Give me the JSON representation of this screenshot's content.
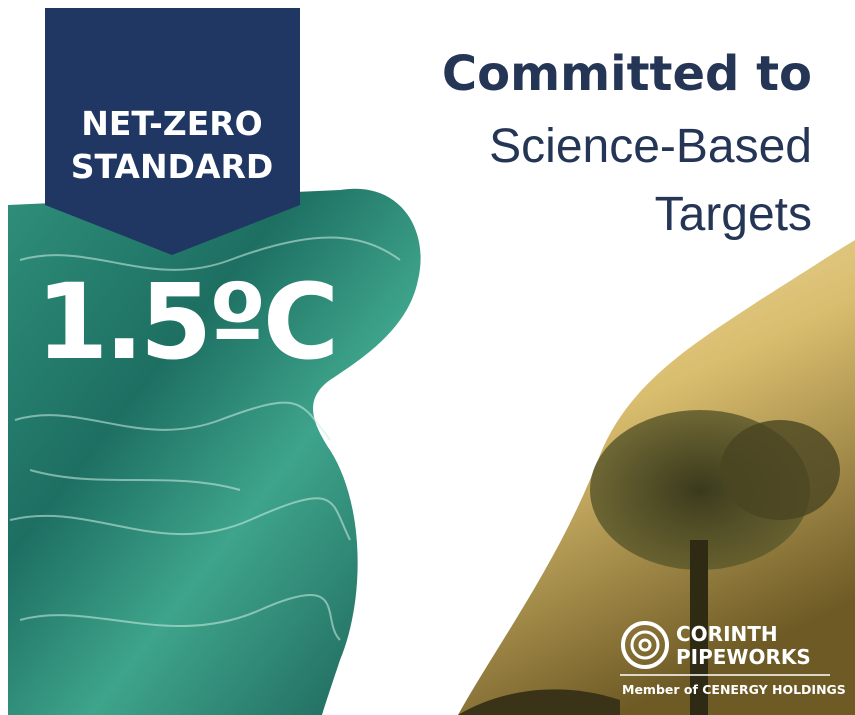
{
  "badge": {
    "lines": [
      "NET-ZERO",
      "STANDARD"
    ]
  },
  "temperature": "1.5ºC",
  "headline": {
    "bold": "Committed to",
    "lines": [
      "Science-Based",
      "Targets"
    ]
  },
  "logo": {
    "lines": [
      "CORINTH",
      "PIPEWORKS"
    ],
    "tagline": "Member of CENERGY HOLDINGS"
  }
}
